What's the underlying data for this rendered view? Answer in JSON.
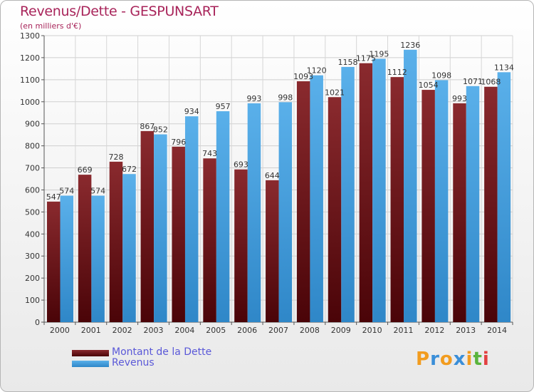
{
  "title": "Revenus/Dette - GESPUNSART",
  "subtitle": "(en milliers d'€)",
  "logo": {
    "letters": [
      "P",
      "r",
      "o",
      "x",
      "i",
      "t",
      "i"
    ],
    "colors": [
      "#f29c1f",
      "#3a8ed8",
      "#f29c1f",
      "#3a8ed8",
      "#f29c1f",
      "#5ab43c",
      "#e24040"
    ]
  },
  "colors": {
    "dette": "#6b1216",
    "revenus": "#4da3e0",
    "title": "#a8245a",
    "legend_text": "#5a58d8"
  },
  "chart_data": {
    "type": "bar",
    "title": "Revenus/Dette - GESPUNSART",
    "ylabel": "(en milliers d'€)",
    "xlabel": "",
    "ylim": [
      0,
      1300
    ],
    "yticks": [
      0,
      100,
      200,
      300,
      400,
      500,
      600,
      700,
      800,
      900,
      1000,
      1100,
      1200,
      1300
    ],
    "grid": true,
    "legend_position": "bottom-left",
    "categories": [
      "2000",
      "2001",
      "2002",
      "2003",
      "2004",
      "2005",
      "2006",
      "2007",
      "2008",
      "2009",
      "2010",
      "2011",
      "2012",
      "2013",
      "2014"
    ],
    "series": [
      {
        "name": "Montant de la Dette",
        "values": [
          547,
          669,
          728,
          867,
          796,
          743,
          693,
          644,
          1093,
          1021,
          1175,
          1112,
          1054,
          993,
          1068
        ]
      },
      {
        "name": "Revenus",
        "values": [
          574,
          574,
          672,
          852,
          934,
          957,
          993,
          998,
          1120,
          1158,
          1195,
          1236,
          1098,
          1071,
          1134
        ]
      }
    ]
  }
}
